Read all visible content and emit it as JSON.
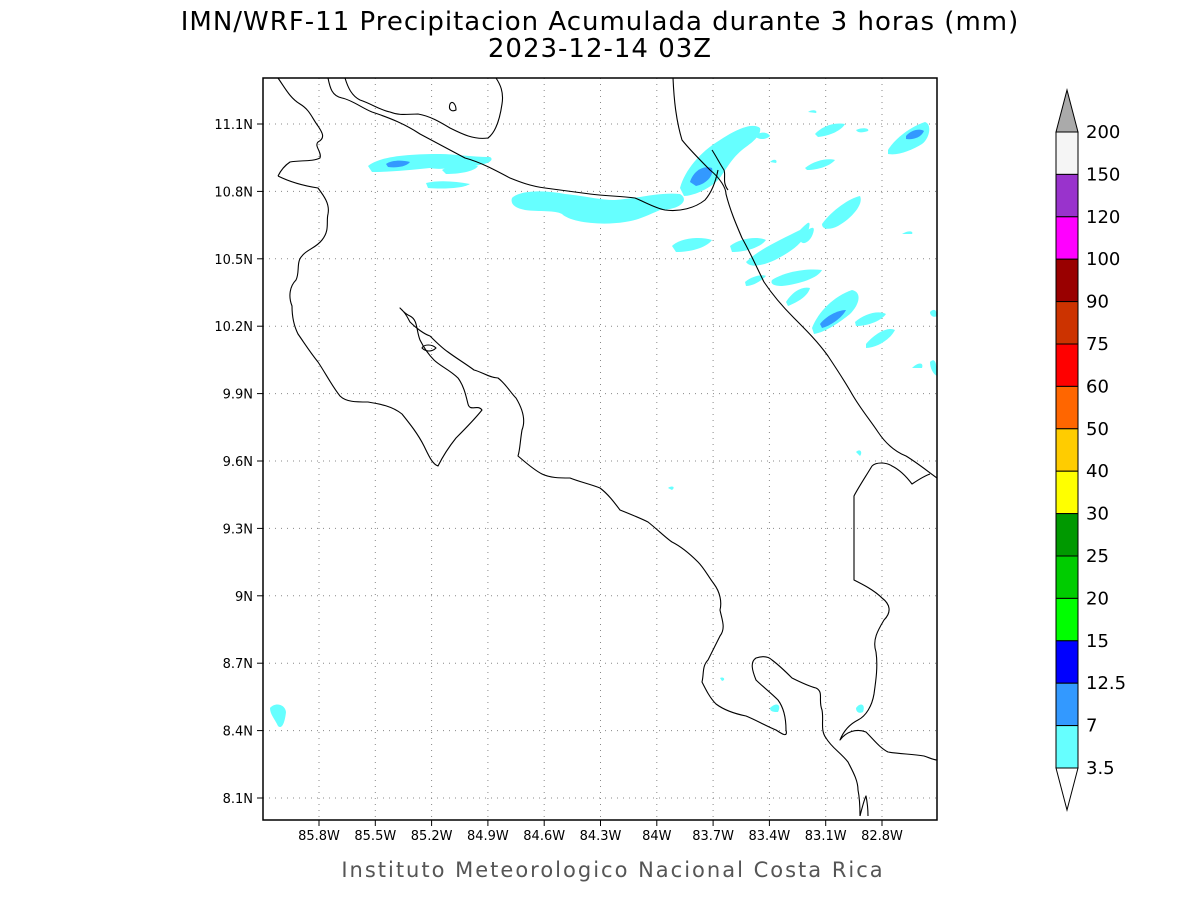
{
  "title": {
    "line1": "IMN/WRF-11 Precipitacion Acumulada durante 3 horas (mm)",
    "line2": "2023-12-14 03Z"
  },
  "footer": "Instituto Meteorologico Nacional Costa Rica",
  "map": {
    "lon_range": [
      -86.0,
      -83.0
    ],
    "lat_range": [
      8.0,
      11.3
    ],
    "lon_ticks": [
      "85.8W",
      "85.5W",
      "85.2W",
      "84.9W",
      "84.6W",
      "84.3W",
      "84W",
      "83.7W",
      "83.4W",
      "83.1W",
      "82.8W"
    ],
    "lat_ticks": [
      "11.1N",
      "10.8N",
      "10.5N",
      "10.2N",
      "9.9N",
      "9.6N",
      "9.3N",
      "9N",
      "8.7N",
      "8.4N",
      "8.1N"
    ],
    "grid": true,
    "coastline_color": "#000000"
  },
  "legend": {
    "type": "colorbar",
    "placement": "right",
    "over_color": "#aaaaaa",
    "under_color": "#ffffff",
    "bins": [
      {
        "label": "200",
        "color": "#f5f5f5"
      },
      {
        "label": "150",
        "color": "#9933cc"
      },
      {
        "label": "120",
        "color": "#ff00ff"
      },
      {
        "label": "100",
        "color": "#990000"
      },
      {
        "label": "90",
        "color": "#cc3300"
      },
      {
        "label": "75",
        "color": "#ff0000"
      },
      {
        "label": "60",
        "color": "#ff6600"
      },
      {
        "label": "50",
        "color": "#ffcc00"
      },
      {
        "label": "40",
        "color": "#ffff00"
      },
      {
        "label": "30",
        "color": "#009900"
      },
      {
        "label": "25",
        "color": "#00cc00"
      },
      {
        "label": "20",
        "color": "#00ff00"
      },
      {
        "label": "15",
        "color": "#0000ff"
      },
      {
        "label": "12.5",
        "color": "#3399ff"
      },
      {
        "label": "7",
        "color": "#66ffff"
      },
      {
        "label": "3.5",
        "color": ""
      }
    ]
  }
}
